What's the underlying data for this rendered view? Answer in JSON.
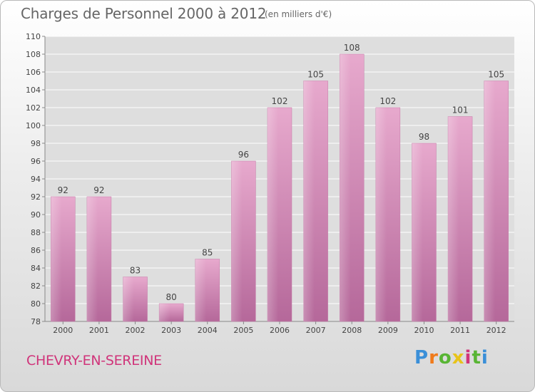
{
  "chart_data": {
    "type": "bar",
    "title": "Charges de Personnel 2000 à 2012",
    "subtitle": "(en milliers d'€)",
    "categories": [
      "2000",
      "2001",
      "2002",
      "2003",
      "2004",
      "2005",
      "2006",
      "2007",
      "2008",
      "2009",
      "2010",
      "2011",
      "2012"
    ],
    "values": [
      92,
      92,
      83,
      80,
      85,
      96,
      102,
      105,
      108,
      102,
      98,
      101,
      105
    ],
    "ylim": [
      78,
      110
    ],
    "yticks": [
      78,
      80,
      82,
      84,
      86,
      88,
      90,
      92,
      94,
      96,
      98,
      100,
      102,
      104,
      106,
      108,
      110
    ],
    "grid": true,
    "bar_color": "#d98bb8"
  },
  "footer": {
    "commune": "CHEVRY-EN-SEREINE",
    "logo": [
      "P",
      "r",
      "o",
      "x",
      "i",
      "t",
      "i"
    ]
  }
}
